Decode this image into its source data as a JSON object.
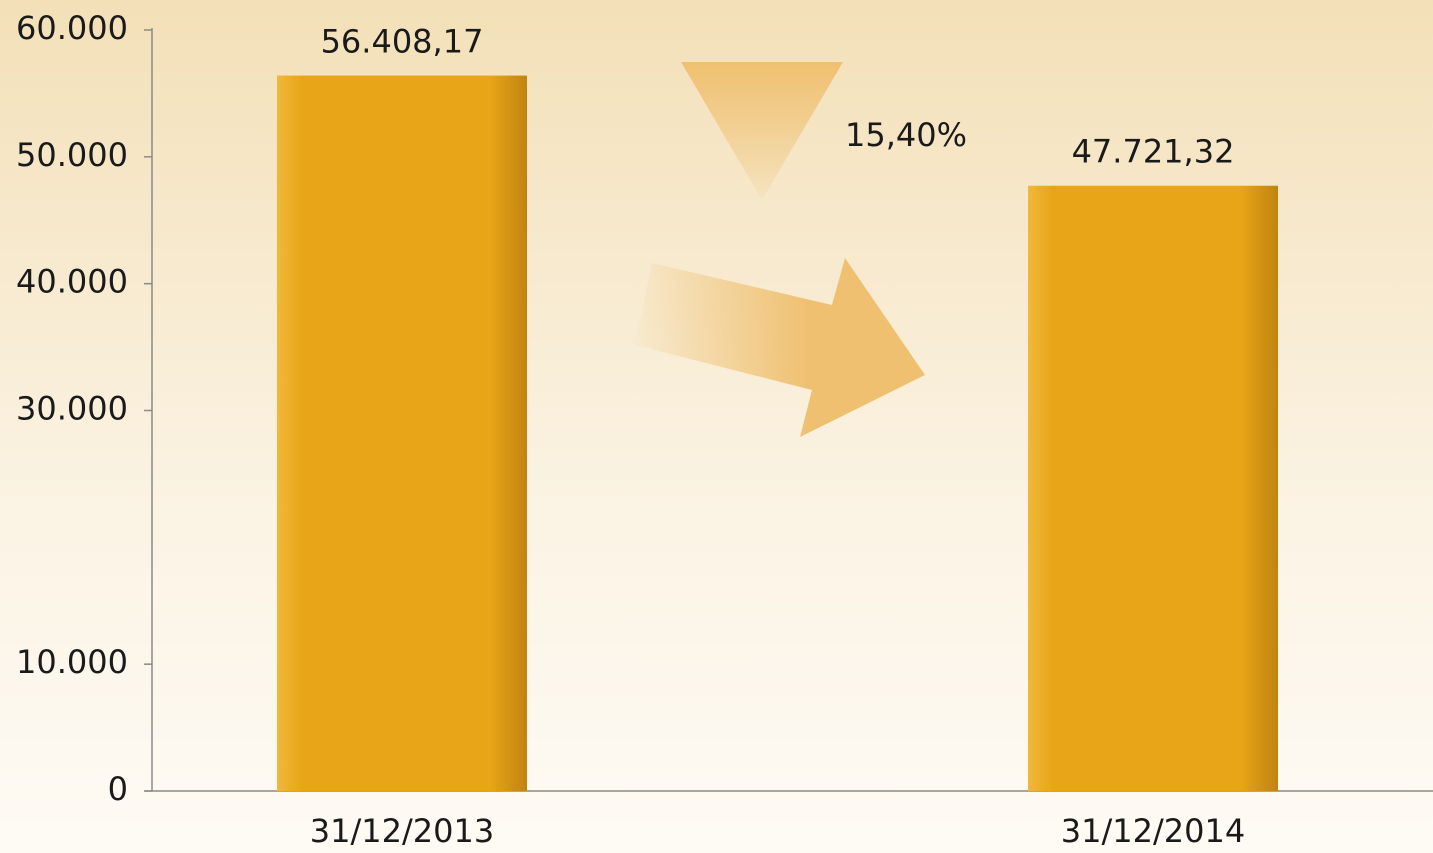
{
  "chart_data": {
    "type": "bar",
    "categories": [
      "31/12/2013",
      "31/12/2014"
    ],
    "values": [
      56408.17,
      47721.32
    ],
    "value_labels": [
      "56.408,17",
      "47.721,32"
    ],
    "color": "#e8a518",
    "annotation": "15,40%",
    "ylim": [
      0,
      60000
    ],
    "yticks": [
      {
        "value": 60000,
        "label": "60.000"
      },
      {
        "value": 50000,
        "label": "50.000"
      },
      {
        "value": 40000,
        "label": "40.000"
      },
      {
        "value": 30000,
        "label": "30.000"
      },
      {
        "value": 10000,
        "label": "10.000"
      },
      0
    ]
  }
}
